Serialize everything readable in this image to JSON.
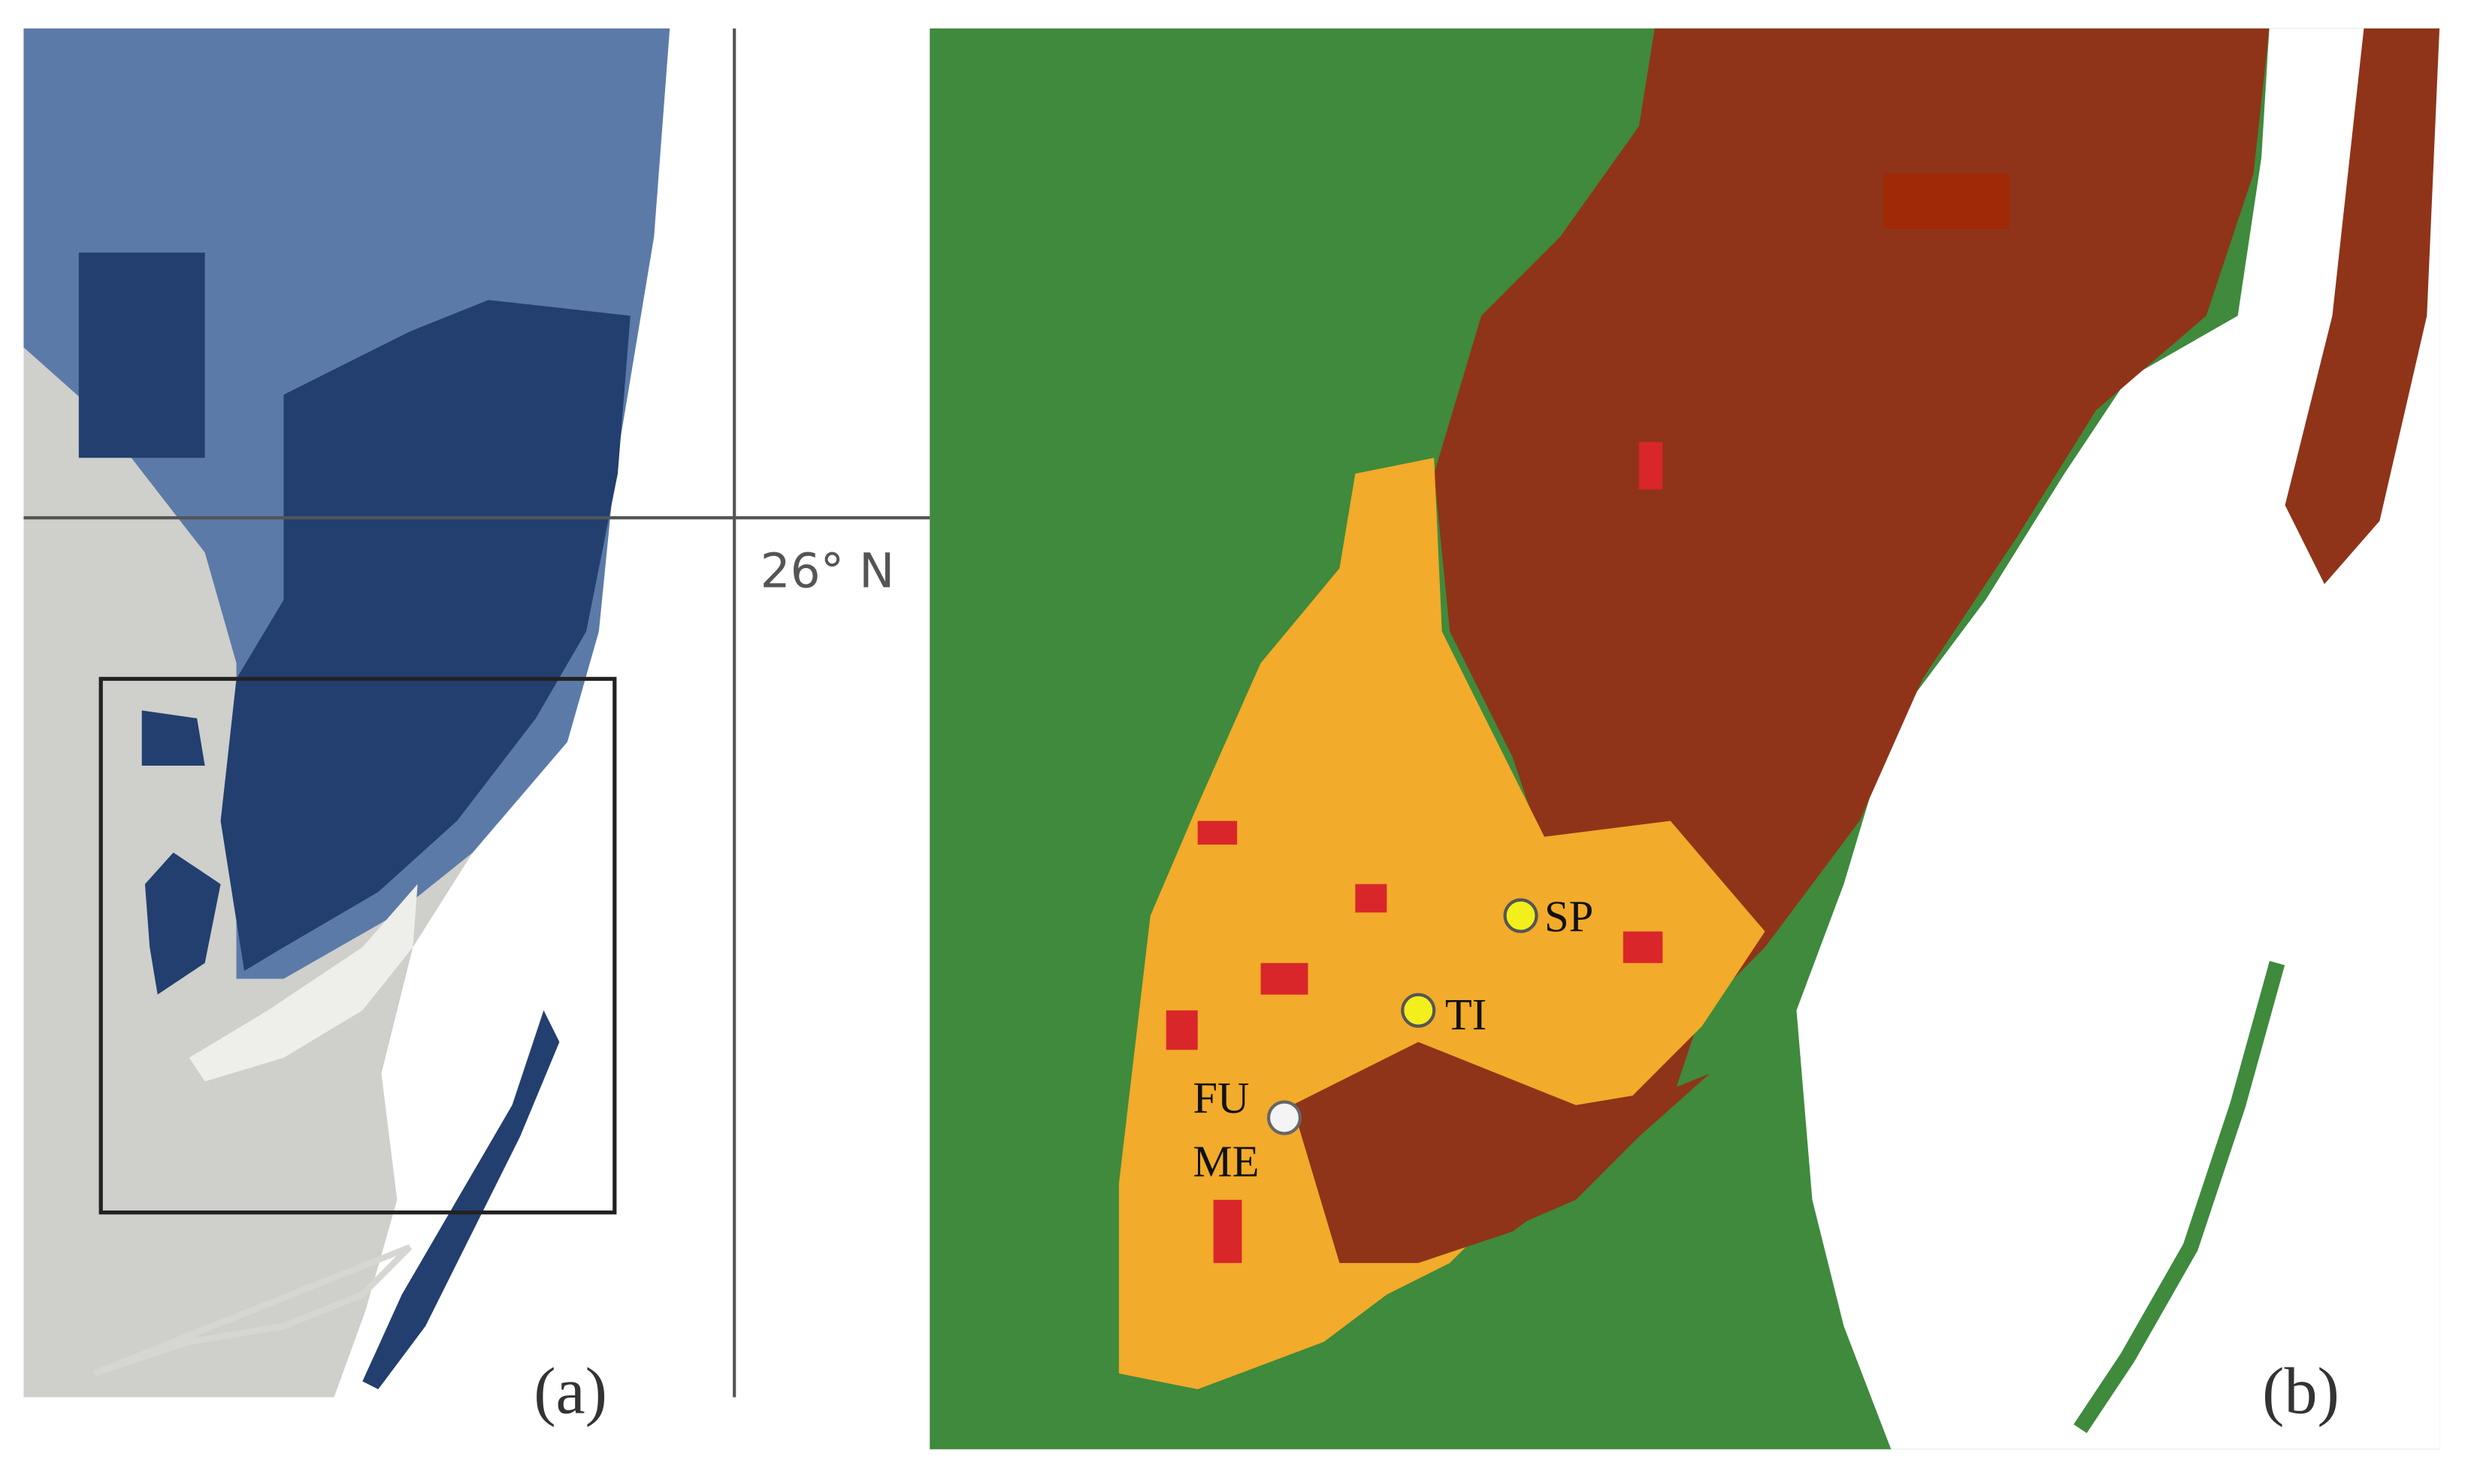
{
  "panel_a": {
    "latitude_label": "26° N",
    "label": "(a)"
  },
  "panel_b": {
    "label": "(b)",
    "sites": [
      {
        "label": "SP"
      },
      {
        "label": "TI"
      },
      {
        "labels": [
          "FU",
          "ME"
        ]
      }
    ]
  }
}
